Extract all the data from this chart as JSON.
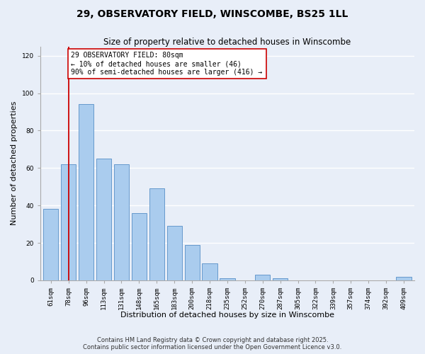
{
  "title": "29, OBSERVATORY FIELD, WINSCOMBE, BS25 1LL",
  "subtitle": "Size of property relative to detached houses in Winscombe",
  "xlabel": "Distribution of detached houses by size in Winscombe",
  "ylabel": "Number of detached properties",
  "bar_labels": [
    "61sqm",
    "78sqm",
    "96sqm",
    "113sqm",
    "131sqm",
    "148sqm",
    "165sqm",
    "183sqm",
    "200sqm",
    "218sqm",
    "235sqm",
    "252sqm",
    "270sqm",
    "287sqm",
    "305sqm",
    "322sqm",
    "339sqm",
    "357sqm",
    "374sqm",
    "392sqm",
    "409sqm"
  ],
  "bar_values": [
    38,
    62,
    94,
    65,
    62,
    36,
    49,
    29,
    19,
    9,
    1,
    0,
    3,
    1,
    0,
    0,
    0,
    0,
    0,
    0,
    2
  ],
  "bar_color": "#aaccee",
  "bar_edge_color": "#6699cc",
  "ylim": [
    0,
    125
  ],
  "yticks": [
    0,
    20,
    40,
    60,
    80,
    100,
    120
  ],
  "vline_x_index": 1,
  "vline_color": "#cc0000",
  "annotation_title": "29 OBSERVATORY FIELD: 80sqm",
  "annotation_line1": "← 10% of detached houses are smaller (46)",
  "annotation_line2": "90% of semi-detached houses are larger (416) →",
  "annotation_box_color": "#ffffff",
  "annotation_box_edge": "#cc0000",
  "footnote1": "Contains HM Land Registry data © Crown copyright and database right 2025.",
  "footnote2": "Contains public sector information licensed under the Open Government Licence v3.0.",
  "background_color": "#e8eef8",
  "grid_color": "#ffffff",
  "title_fontsize": 10,
  "subtitle_fontsize": 8.5,
  "axis_label_fontsize": 8,
  "tick_fontsize": 6.5,
  "annotation_fontsize": 7,
  "footnote_fontsize": 6
}
